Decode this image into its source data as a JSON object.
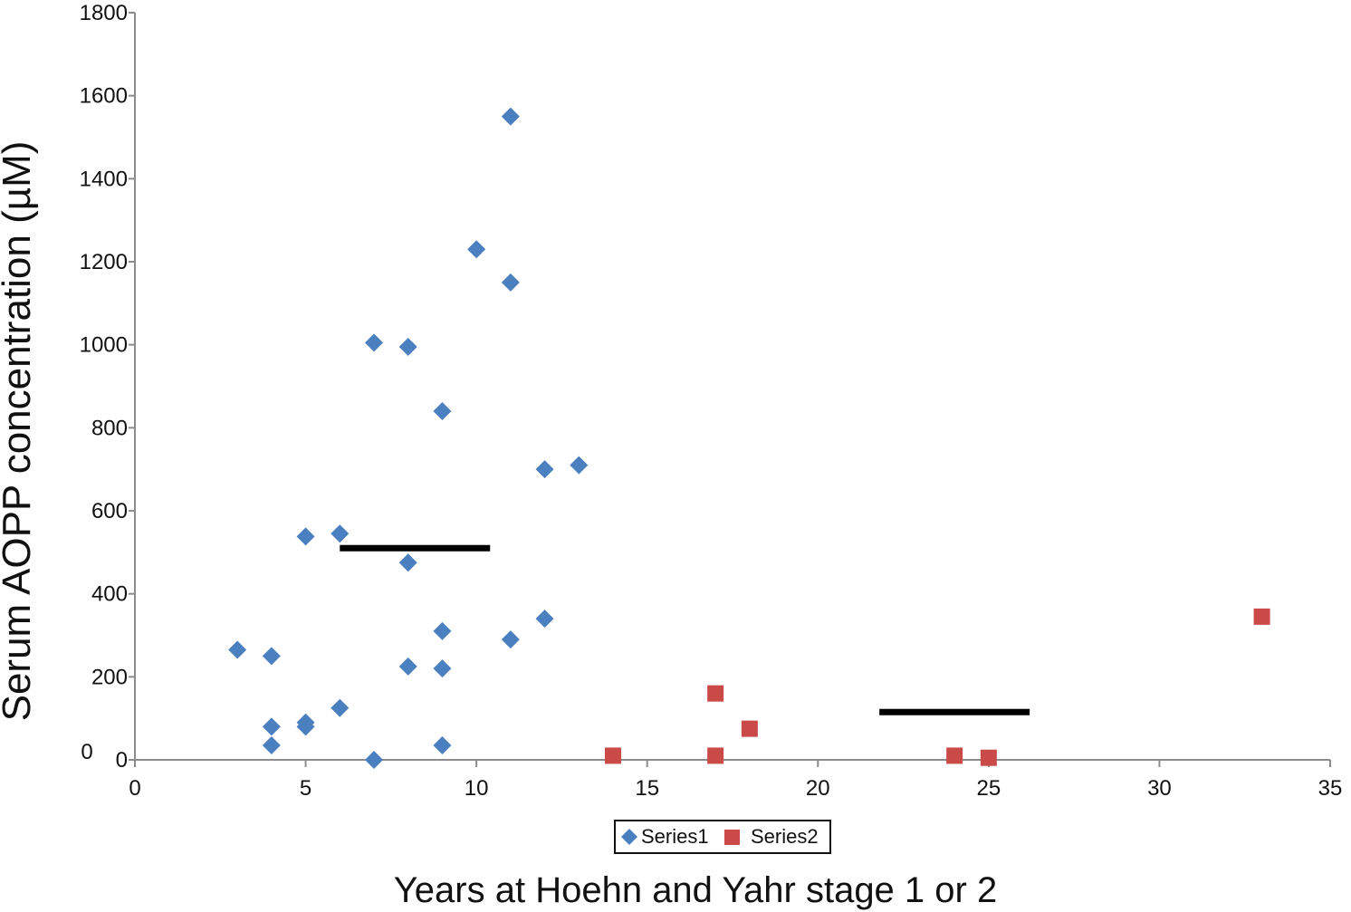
{
  "chart_data": {
    "type": "scatter",
    "title": "",
    "xlabel": "Years at Hoehn and Yahr stage 1 or 2",
    "ylabel": "Serum AOPP concentration (µM)",
    "xlim": [
      0,
      35
    ],
    "ylim": [
      0,
      1800
    ],
    "x_ticks": [
      "0",
      "5",
      "10",
      "15",
      "20",
      "25",
      "30",
      "35"
    ],
    "y_ticks": [
      "1800",
      "1600",
      "1400",
      "1200",
      "1000",
      "800",
      "600",
      "400",
      "200",
      "0"
    ],
    "y_zero_extra_label": "0",
    "grid": false,
    "legend_position": "bottom",
    "series": [
      {
        "name": "Series1",
        "marker": "diamond",
        "color": "#4a7fc0",
        "points": [
          {
            "x": 3,
            "y": 265
          },
          {
            "x": 4,
            "y": 250
          },
          {
            "x": 4,
            "y": 80
          },
          {
            "x": 4,
            "y": 35
          },
          {
            "x": 5,
            "y": 538
          },
          {
            "x": 5,
            "y": 90
          },
          {
            "x": 5,
            "y": 80
          },
          {
            "x": 6,
            "y": 545
          },
          {
            "x": 6,
            "y": 125
          },
          {
            "x": 7,
            "y": 1005
          },
          {
            "x": 7,
            "y": 0
          },
          {
            "x": 8,
            "y": 995
          },
          {
            "x": 8,
            "y": 475
          },
          {
            "x": 8,
            "y": 225
          },
          {
            "x": 9,
            "y": 840
          },
          {
            "x": 9,
            "y": 310
          },
          {
            "x": 9,
            "y": 220
          },
          {
            "x": 9,
            "y": 35
          },
          {
            "x": 10,
            "y": 1230
          },
          {
            "x": 11,
            "y": 1550
          },
          {
            "x": 11,
            "y": 1150
          },
          {
            "x": 11,
            "y": 290
          },
          {
            "x": 12,
            "y": 700
          },
          {
            "x": 12,
            "y": 340
          },
          {
            "x": 13,
            "y": 710
          }
        ]
      },
      {
        "name": "Series2",
        "marker": "square",
        "color": "#c94a47",
        "points": [
          {
            "x": 14,
            "y": 10
          },
          {
            "x": 17,
            "y": 160
          },
          {
            "x": 17,
            "y": 10
          },
          {
            "x": 18,
            "y": 75
          },
          {
            "x": 24,
            "y": 10
          },
          {
            "x": 25,
            "y": 5
          },
          {
            "x": 33,
            "y": 345
          }
        ]
      }
    ],
    "mean_lines": [
      {
        "x1": 6,
        "x2": 10.4,
        "y": 510,
        "color": "#000000"
      },
      {
        "x1": 21.8,
        "x2": 26.2,
        "y": 115,
        "color": "#000000"
      }
    ]
  }
}
